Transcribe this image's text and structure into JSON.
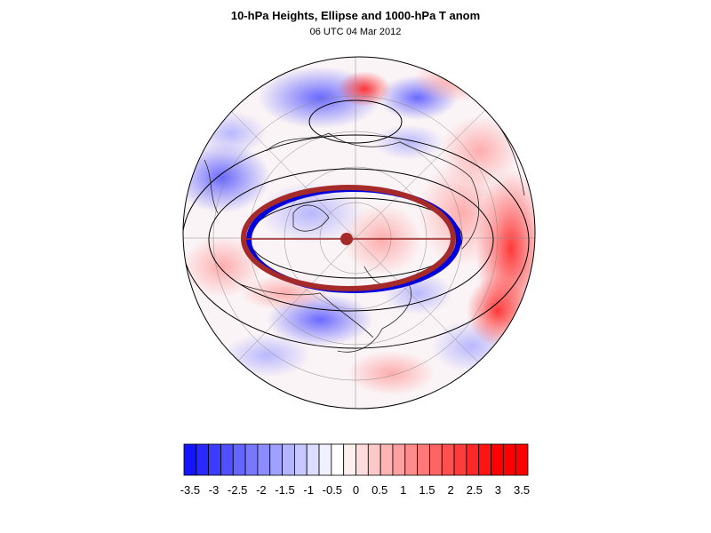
{
  "title": "10-hPa Heights, Ellipse and 1000-hPa T anom",
  "subtitle": "06 UTC 04 Mar 2012",
  "colorbar": {
    "levels": [
      -3.5,
      -3.25,
      -3,
      -2.75,
      -2.5,
      -2.25,
      -2,
      -1.75,
      -1.5,
      -1.25,
      -1,
      -0.75,
      -0.5,
      -0.25,
      0,
      0.25,
      0.5,
      0.75,
      1,
      1.25,
      1.5,
      1.75,
      2,
      2.25,
      2.5,
      2.75,
      3,
      3.25,
      3.5
    ],
    "tick_labels": [
      "-3.5",
      "-3",
      "-2.5",
      "-2",
      "-1.5",
      "-1",
      "-0.5",
      "0",
      "0.5",
      "1",
      "1.5",
      "2",
      "2.5",
      "3",
      "3.5"
    ],
    "colors": [
      "#1414ff",
      "#2828ff",
      "#3c3cff",
      "#5050ff",
      "#6464ff",
      "#7878ff",
      "#8c8cff",
      "#a0a0ff",
      "#b4b4ff",
      "#c8c8ff",
      "#dcdcff",
      "#f0f0ff",
      "#ffffff",
      "#fff0f0",
      "#ffdcdc",
      "#ffc8c8",
      "#ffb4b4",
      "#ffa0a0",
      "#ff8c8c",
      "#ff7878",
      "#ff6464",
      "#ff5050",
      "#ff3c3c",
      "#ff2828",
      "#ff1414",
      "#ff0000",
      "#ff0000",
      "#ff0000"
    ]
  },
  "map": {
    "projection": "orthographic-polar",
    "ellipse_color": "#a52a2a",
    "blue_ellipse_color": "#0000dd"
  }
}
